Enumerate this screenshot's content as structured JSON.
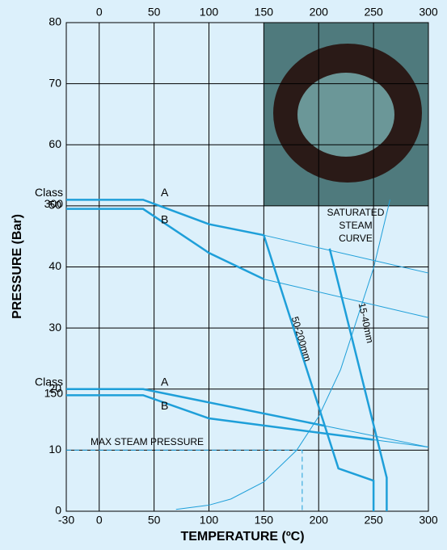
{
  "chart_data": {
    "type": "line",
    "x_label": "TEMPERATURE (ºC)",
    "y_label": "PRESSURE (Bar)",
    "xlim": [
      -30,
      300
    ],
    "ylim": [
      0,
      80
    ],
    "xticks": [
      -30,
      0,
      50,
      100,
      150,
      200,
      250,
      300
    ],
    "x2ticks": [
      0,
      50,
      100,
      150,
      200,
      250,
      300
    ],
    "yticks": [
      0,
      10,
      20,
      30,
      40,
      50,
      60,
      70,
      80
    ],
    "grid": true,
    "color": "#1e9fd9",
    "series": [
      {
        "name": "A",
        "style": "thick",
        "x": [
          -30,
          40,
          100,
          150,
          218,
          250,
          250
        ],
        "values": [
          51,
          51,
          47,
          45.2,
          7,
          5,
          0
        ]
      },
      {
        "name": "B",
        "style": "thick",
        "x": [
          -30,
          40,
          100,
          150
        ],
        "values": [
          49.5,
          49.5,
          42.3,
          38
        ]
      },
      {
        "style": "thin",
        "x": [
          150,
          300
        ],
        "values": [
          45.2,
          39
        ]
      },
      {
        "style": "thin",
        "x": [
          150,
          300
        ],
        "values": [
          38,
          31.7
        ]
      },
      {
        "style": "thick",
        "x": [
          210,
          262,
          262
        ],
        "values": [
          43,
          5.5,
          0
        ]
      },
      {
        "name": "A",
        "style": "thick",
        "x": [
          -30,
          40,
          205
        ],
        "values": [
          20,
          20,
          14
        ]
      },
      {
        "style": "thin",
        "x": [
          205,
          300
        ],
        "values": [
          14,
          10.5
        ]
      },
      {
        "name": "B",
        "style": "thick",
        "x": [
          -30,
          40,
          100,
          250
        ],
        "values": [
          19,
          19,
          15.2,
          11.7
        ]
      },
      {
        "style": "thin",
        "x": [
          250,
          300
        ],
        "values": [
          11.7,
          10.5
        ]
      },
      {
        "style": "thin",
        "x": [
          70,
          100,
          120,
          150,
          180,
          200,
          220,
          250,
          265
        ],
        "values": [
          0.3,
          1,
          2,
          4.8,
          10,
          15.5,
          23.2,
          39.8,
          51
        ]
      },
      {
        "style": "dashed",
        "x": [
          -30,
          185,
          185
        ],
        "values": [
          10,
          10,
          0
        ]
      }
    ],
    "annotations": {
      "class_300": [
        "Class",
        "300"
      ],
      "class_150": [
        "Class",
        "150"
      ],
      "max_steam": "MAX STEAM PRESSURE",
      "steam_curve": [
        "SATURATED",
        "STEAM",
        "CURVE"
      ],
      "size_large": "50-200mm",
      "size_small": "15-40mm"
    }
  }
}
